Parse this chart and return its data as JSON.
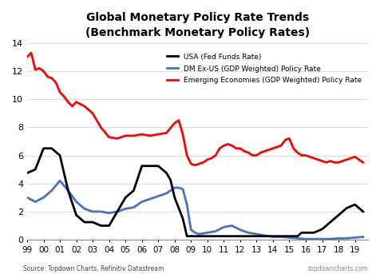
{
  "title": "Global Monetary Policy Rate Trends",
  "subtitle": "(Benchmark Monetary Policy Rates)",
  "source_left": "Source: Topdown Charts, Refinitiv Datastream",
  "source_right": "topdowncharts.com",
  "xlabel": "",
  "ylabel": "",
  "ylim": [
    0,
    14
  ],
  "yticks": [
    0,
    2,
    4,
    6,
    8,
    10,
    12,
    14
  ],
  "xtick_labels": [
    "99",
    "00",
    "01",
    "02",
    "03",
    "04",
    "05",
    "06",
    "07",
    "08",
    "09",
    "10",
    "11",
    "12",
    "13",
    "14",
    "15",
    "16",
    "17",
    "18",
    "19"
  ],
  "legend": [
    {
      "label": "USA (Fed Funds Rate)",
      "color": "#000000",
      "lw": 2.0
    },
    {
      "label": "DM Ex-US (GDP Weighted) Policy Rate",
      "color": "#4472C4",
      "lw": 2.0
    },
    {
      "label": "Emerging Economies (GDP Weighted) Policy Rate",
      "color": "#FF0000",
      "lw": 2.0
    }
  ],
  "usa": {
    "x": [
      1999.0,
      1999.5,
      2000.0,
      2000.5,
      2001.0,
      2001.5,
      2002.0,
      2002.5,
      2003.0,
      2003.5,
      2004.0,
      2004.5,
      2005.0,
      2005.5,
      2006.0,
      2006.5,
      2007.0,
      2007.5,
      2007.75,
      2008.0,
      2008.25,
      2008.5,
      2008.75,
      2009.0,
      2009.5,
      2010.0,
      2010.5,
      2011.0,
      2011.5,
      2012.0,
      2012.5,
      2013.0,
      2013.5,
      2014.0,
      2014.5,
      2015.0,
      2015.5,
      2015.75,
      2016.0,
      2016.5,
      2017.0,
      2017.5,
      2018.0,
      2018.5,
      2019.0,
      2019.25,
      2019.5
    ],
    "y": [
      4.75,
      5.0,
      6.5,
      6.5,
      6.0,
      3.5,
      1.75,
      1.25,
      1.25,
      1.0,
      1.0,
      2.0,
      3.0,
      3.5,
      5.25,
      5.25,
      5.25,
      4.75,
      4.25,
      3.0,
      2.25,
      1.5,
      0.25,
      0.25,
      0.25,
      0.25,
      0.25,
      0.25,
      0.25,
      0.25,
      0.25,
      0.25,
      0.25,
      0.25,
      0.25,
      0.25,
      0.25,
      0.5,
      0.5,
      0.5,
      0.75,
      1.25,
      1.75,
      2.25,
      2.5,
      2.25,
      2.0
    ],
    "color": "#000000",
    "lw": 2.0
  },
  "dm_ex_us": {
    "x": [
      1999.0,
      1999.5,
      2000.0,
      2000.5,
      2001.0,
      2001.5,
      2002.0,
      2002.5,
      2003.0,
      2003.5,
      2004.0,
      2004.5,
      2005.0,
      2005.5,
      2006.0,
      2006.5,
      2007.0,
      2007.5,
      2008.0,
      2008.25,
      2008.5,
      2008.75,
      2009.0,
      2009.25,
      2009.5,
      2010.0,
      2010.5,
      2011.0,
      2011.5,
      2012.0,
      2012.5,
      2013.0,
      2013.5,
      2014.0,
      2014.5,
      2015.0,
      2015.5,
      2016.0,
      2016.5,
      2017.0,
      2017.5,
      2018.0,
      2018.5,
      2019.0,
      2019.5
    ],
    "y": [
      3.0,
      2.7,
      3.0,
      3.5,
      4.2,
      3.5,
      2.7,
      2.2,
      2.0,
      2.0,
      1.9,
      2.0,
      2.2,
      2.3,
      2.7,
      2.9,
      3.1,
      3.3,
      3.7,
      3.7,
      3.6,
      2.5,
      0.7,
      0.5,
      0.4,
      0.5,
      0.6,
      0.9,
      1.0,
      0.7,
      0.5,
      0.4,
      0.3,
      0.2,
      0.2,
      0.15,
      0.1,
      0.05,
      0.05,
      0.05,
      0.05,
      0.1,
      0.1,
      0.15,
      0.2
    ],
    "color": "#4472C4",
    "lw": 2.0
  },
  "emerging": {
    "x": [
      1999.0,
      1999.25,
      1999.5,
      1999.75,
      2000.0,
      2000.25,
      2000.5,
      2000.75,
      2001.0,
      2001.25,
      2001.5,
      2001.75,
      2002.0,
      2002.5,
      2003.0,
      2003.5,
      2004.0,
      2004.5,
      2005.0,
      2005.5,
      2006.0,
      2006.5,
      2007.0,
      2007.5,
      2008.0,
      2008.25,
      2008.5,
      2008.75,
      2009.0,
      2009.25,
      2009.5,
      2009.75,
      2010.0,
      2010.25,
      2010.5,
      2010.75,
      2011.0,
      2011.25,
      2011.5,
      2011.75,
      2012.0,
      2012.25,
      2012.5,
      2012.75,
      2013.0,
      2013.25,
      2013.5,
      2013.75,
      2014.0,
      2014.25,
      2014.5,
      2014.75,
      2015.0,
      2015.25,
      2015.5,
      2015.75,
      2016.0,
      2016.25,
      2016.5,
      2016.75,
      2017.0,
      2017.25,
      2017.5,
      2017.75,
      2018.0,
      2018.25,
      2018.5,
      2018.75,
      2019.0,
      2019.25,
      2019.5
    ],
    "y": [
      13.0,
      13.3,
      12.1,
      12.2,
      12.0,
      11.6,
      11.5,
      11.2,
      10.5,
      10.2,
      9.8,
      9.5,
      9.8,
      9.5,
      9.0,
      8.0,
      7.3,
      7.2,
      7.4,
      7.4,
      7.5,
      7.4,
      7.5,
      7.6,
      8.3,
      8.5,
      7.5,
      6.0,
      5.4,
      5.3,
      5.4,
      5.5,
      5.7,
      5.8,
      6.0,
      6.5,
      6.7,
      6.8,
      6.7,
      6.5,
      6.5,
      6.3,
      6.2,
      6.0,
      6.0,
      6.2,
      6.3,
      6.4,
      6.5,
      6.6,
      6.7,
      7.1,
      7.2,
      6.5,
      6.2,
      6.0,
      6.0,
      5.9,
      5.8,
      5.7,
      5.6,
      5.5,
      5.6,
      5.5,
      5.5,
      5.6,
      5.7,
      5.8,
      5.9,
      5.7,
      5.5
    ],
    "color": "#FF0000",
    "lw": 2.0
  },
  "background_color": "#ffffff",
  "plot_bg_color": "#ffffff",
  "border_color": "#000000"
}
